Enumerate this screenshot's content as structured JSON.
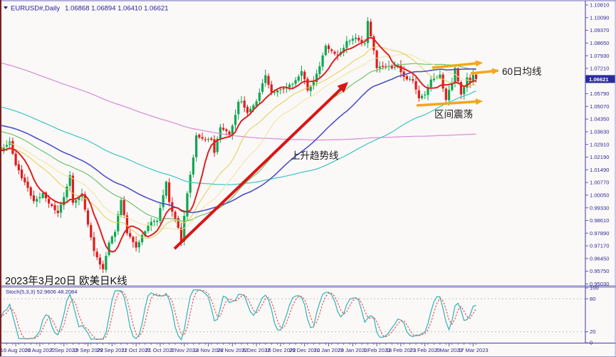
{
  "window": {
    "bg": "#fbf8f8",
    "frame": "#5b5bb0",
    "frame_light": "#9a9ad2",
    "left_edge": "#7a2020"
  },
  "header": {
    "symbol_period": "EURUSD#,Daily",
    "quote_line": "1.06868 1.06894 1.06410 1.06621",
    "text_color": "#26269c"
  },
  "footer": {
    "date_note": "2023年3月20日 欧美日K线"
  },
  "annotations": {
    "trend_label": "上升趋势线",
    "ma60_label": "60日均线",
    "range_label": "区间震荡",
    "arrow_color": "#f2a71b",
    "trend_arrow_color": "#dd1414"
  },
  "price_axis": {
    "text_color": "#2c2c96",
    "current_label": "1.06621",
    "badge_bg": "#2b2ba0",
    "badge_fg": "#ffffff",
    "labels": [
      "1.10810",
      "1.10090",
      "1.09370",
      "1.08650",
      "1.07930",
      "1.07210",
      "1.06490",
      "1.05790",
      "1.05070",
      "1.04350",
      "1.03630",
      "1.02910",
      "1.02190",
      "1.01490",
      "1.00770",
      "1.00050",
      "0.99330",
      "0.98610",
      "0.97890",
      "0.97170",
      "0.96450",
      "0.95750",
      "0.95030"
    ]
  },
  "date_axis": {
    "text_color": "#2c2c96",
    "labels": [
      "16 Aug 2022",
      "26 Aug 2022",
      "7 Sep 2022",
      "19 Sep 2022",
      "29 Sep 2022",
      "11 Oct 2022",
      "21 Oct 2022",
      "2 Nov 2022",
      "14 Nov 2022",
      "24 Nov 2022",
      "6 Dec 2022",
      "16 Dec 2022",
      "29 Dec 2022",
      "10 Jan 2023",
      "20 Jan 2023",
      "1 Feb 2023",
      "13 Feb 2023",
      "23 Feb 2023",
      "7 Mar 2023",
      "17 Mar 2023"
    ]
  },
  "indicator": {
    "label_line": "Stoch(5,3,3) 52.9606 48.2084",
    "name": "Stoch",
    "params": "5,3,3",
    "k_value": 52.9606,
    "d_value": 48.2084,
    "levels": [
      "100",
      "80",
      "20",
      "0"
    ],
    "level_values": [
      100,
      80,
      20,
      0
    ],
    "k_color": "#2fb3b3",
    "d_color": "#e05858",
    "level_line_color": "#c2c2c2"
  },
  "chart_data": {
    "type": "candlestick",
    "symbol": "EURUSD#",
    "timeframe": "Daily",
    "title": "EURUSD# Daily K线 (欧美日K线) 2023年3月20日",
    "current_ohlc": {
      "open": 1.06868,
      "high": 1.06894,
      "low": 1.0641,
      "close": 1.06621
    },
    "y_top_price": 1.1081,
    "y_bottom_price": 0.9503,
    "up_color": "#0aa84f",
    "down_color": "#e11b1b",
    "x_tick_dates": [
      "16 Aug 2022",
      "26 Aug 2022",
      "7 Sep 2022",
      "19 Sep 2022",
      "29 Sep 2022",
      "11 Oct 2022",
      "21 Oct 2022",
      "2 Nov 2022",
      "14 Nov 2022",
      "24 Nov 2022",
      "6 Dec 2022",
      "16 Dec 2022",
      "29 Dec 2022",
      "10 Jan 2023",
      "20 Jan 2023",
      "1 Feb 2023",
      "13 Feb 2023",
      "23 Feb 2023",
      "7 Mar 2023",
      "17 Mar 2023"
    ],
    "close_anchors": [
      [
        0,
        1.0262
      ],
      [
        3,
        1.031
      ],
      [
        5,
        1.0172
      ],
      [
        9,
        1.0042
      ],
      [
        11,
        0.9966
      ],
      [
        14,
        1.0012
      ],
      [
        16,
        0.9955
      ],
      [
        19,
        0.9905
      ],
      [
        21,
        0.9998
      ],
      [
        23,
        1.012
      ],
      [
        24,
        0.9968
      ],
      [
        27,
        1.0012
      ],
      [
        29,
        0.9837
      ],
      [
        31,
        0.969
      ],
      [
        33,
        0.9608
      ],
      [
        34,
        0.959
      ],
      [
        36,
        0.9735
      ],
      [
        38,
        0.9802
      ],
      [
        40,
        0.9983
      ],
      [
        42,
        0.9794
      ],
      [
        45,
        0.9703
      ],
      [
        47,
        0.9777
      ],
      [
        50,
        0.9855
      ],
      [
        52,
        0.9862
      ],
      [
        55,
        1.0082
      ],
      [
        56,
        0.9963
      ],
      [
        59,
        0.9816
      ],
      [
        60,
        0.9749
      ],
      [
        62,
        1.0021
      ],
      [
        64,
        1.0211
      ],
      [
        65,
        1.0348
      ],
      [
        67,
        1.0325
      ],
      [
        70,
        1.0322
      ],
      [
        71,
        1.0243
      ],
      [
        73,
        1.0395
      ],
      [
        76,
        1.0343
      ],
      [
        79,
        1.0526
      ],
      [
        80,
        1.0537
      ],
      [
        82,
        1.0467
      ],
      [
        85,
        1.0531
      ],
      [
        87,
        1.0631
      ],
      [
        88,
        1.0683
      ],
      [
        90,
        1.0588
      ],
      [
        93,
        1.0604
      ],
      [
        97,
        1.064
      ],
      [
        100,
        1.0705
      ],
      [
        102,
        1.0603
      ],
      [
        104,
        1.0644
      ],
      [
        106,
        1.0734
      ],
      [
        108,
        1.0852
      ],
      [
        112,
        1.0793
      ],
      [
        115,
        1.0871
      ],
      [
        118,
        1.0891
      ],
      [
        121,
        1.0863
      ],
      [
        122,
        1.0988
      ],
      [
        123,
        1.091
      ],
      [
        125,
        1.0727
      ],
      [
        128,
        1.0739
      ],
      [
        130,
        1.0723
      ],
      [
        132,
        1.0737
      ],
      [
        134,
        1.0673
      ],
      [
        137,
        1.0648
      ],
      [
        139,
        1.0548
      ],
      [
        141,
        1.0577
      ],
      [
        143,
        1.0666
      ],
      [
        146,
        1.0681
      ],
      [
        148,
        1.0545
      ],
      [
        150,
        1.0643
      ],
      [
        151,
        1.073
      ],
      [
        153,
        1.0577
      ],
      [
        154,
        1.0611
      ],
      [
        155,
        1.0665
      ],
      [
        156,
        1.064
      ],
      [
        157,
        1.0686
      ],
      [
        158,
        1.06621
      ]
    ],
    "prehistory": {
      "slope_per_day": 0.0005,
      "wave_amp": 0.004
    },
    "moving_averages": [
      {
        "period": 200,
        "color": "#d78ad7",
        "width": 1.2
      },
      {
        "period": 100,
        "color": "#49c8c8",
        "width": 1.3
      },
      {
        "period": 45,
        "color": "#6cc56c",
        "width": 1.2
      },
      {
        "period": 30,
        "color": "#f0e49a",
        "width": 1.0
      },
      {
        "period": 20,
        "color": "#e3cf4a",
        "width": 1.0
      },
      {
        "period": 60,
        "color": "#4953c8",
        "width": 1.6
      },
      {
        "period": 8,
        "color": "#e02020",
        "width": 2.0
      }
    ],
    "stochastic": {
      "k_period": 5,
      "slowing": 3,
      "d_period": 3,
      "current_k": 52.9606,
      "current_d": 48.2084,
      "levels": [
        80,
        20
      ]
    }
  }
}
